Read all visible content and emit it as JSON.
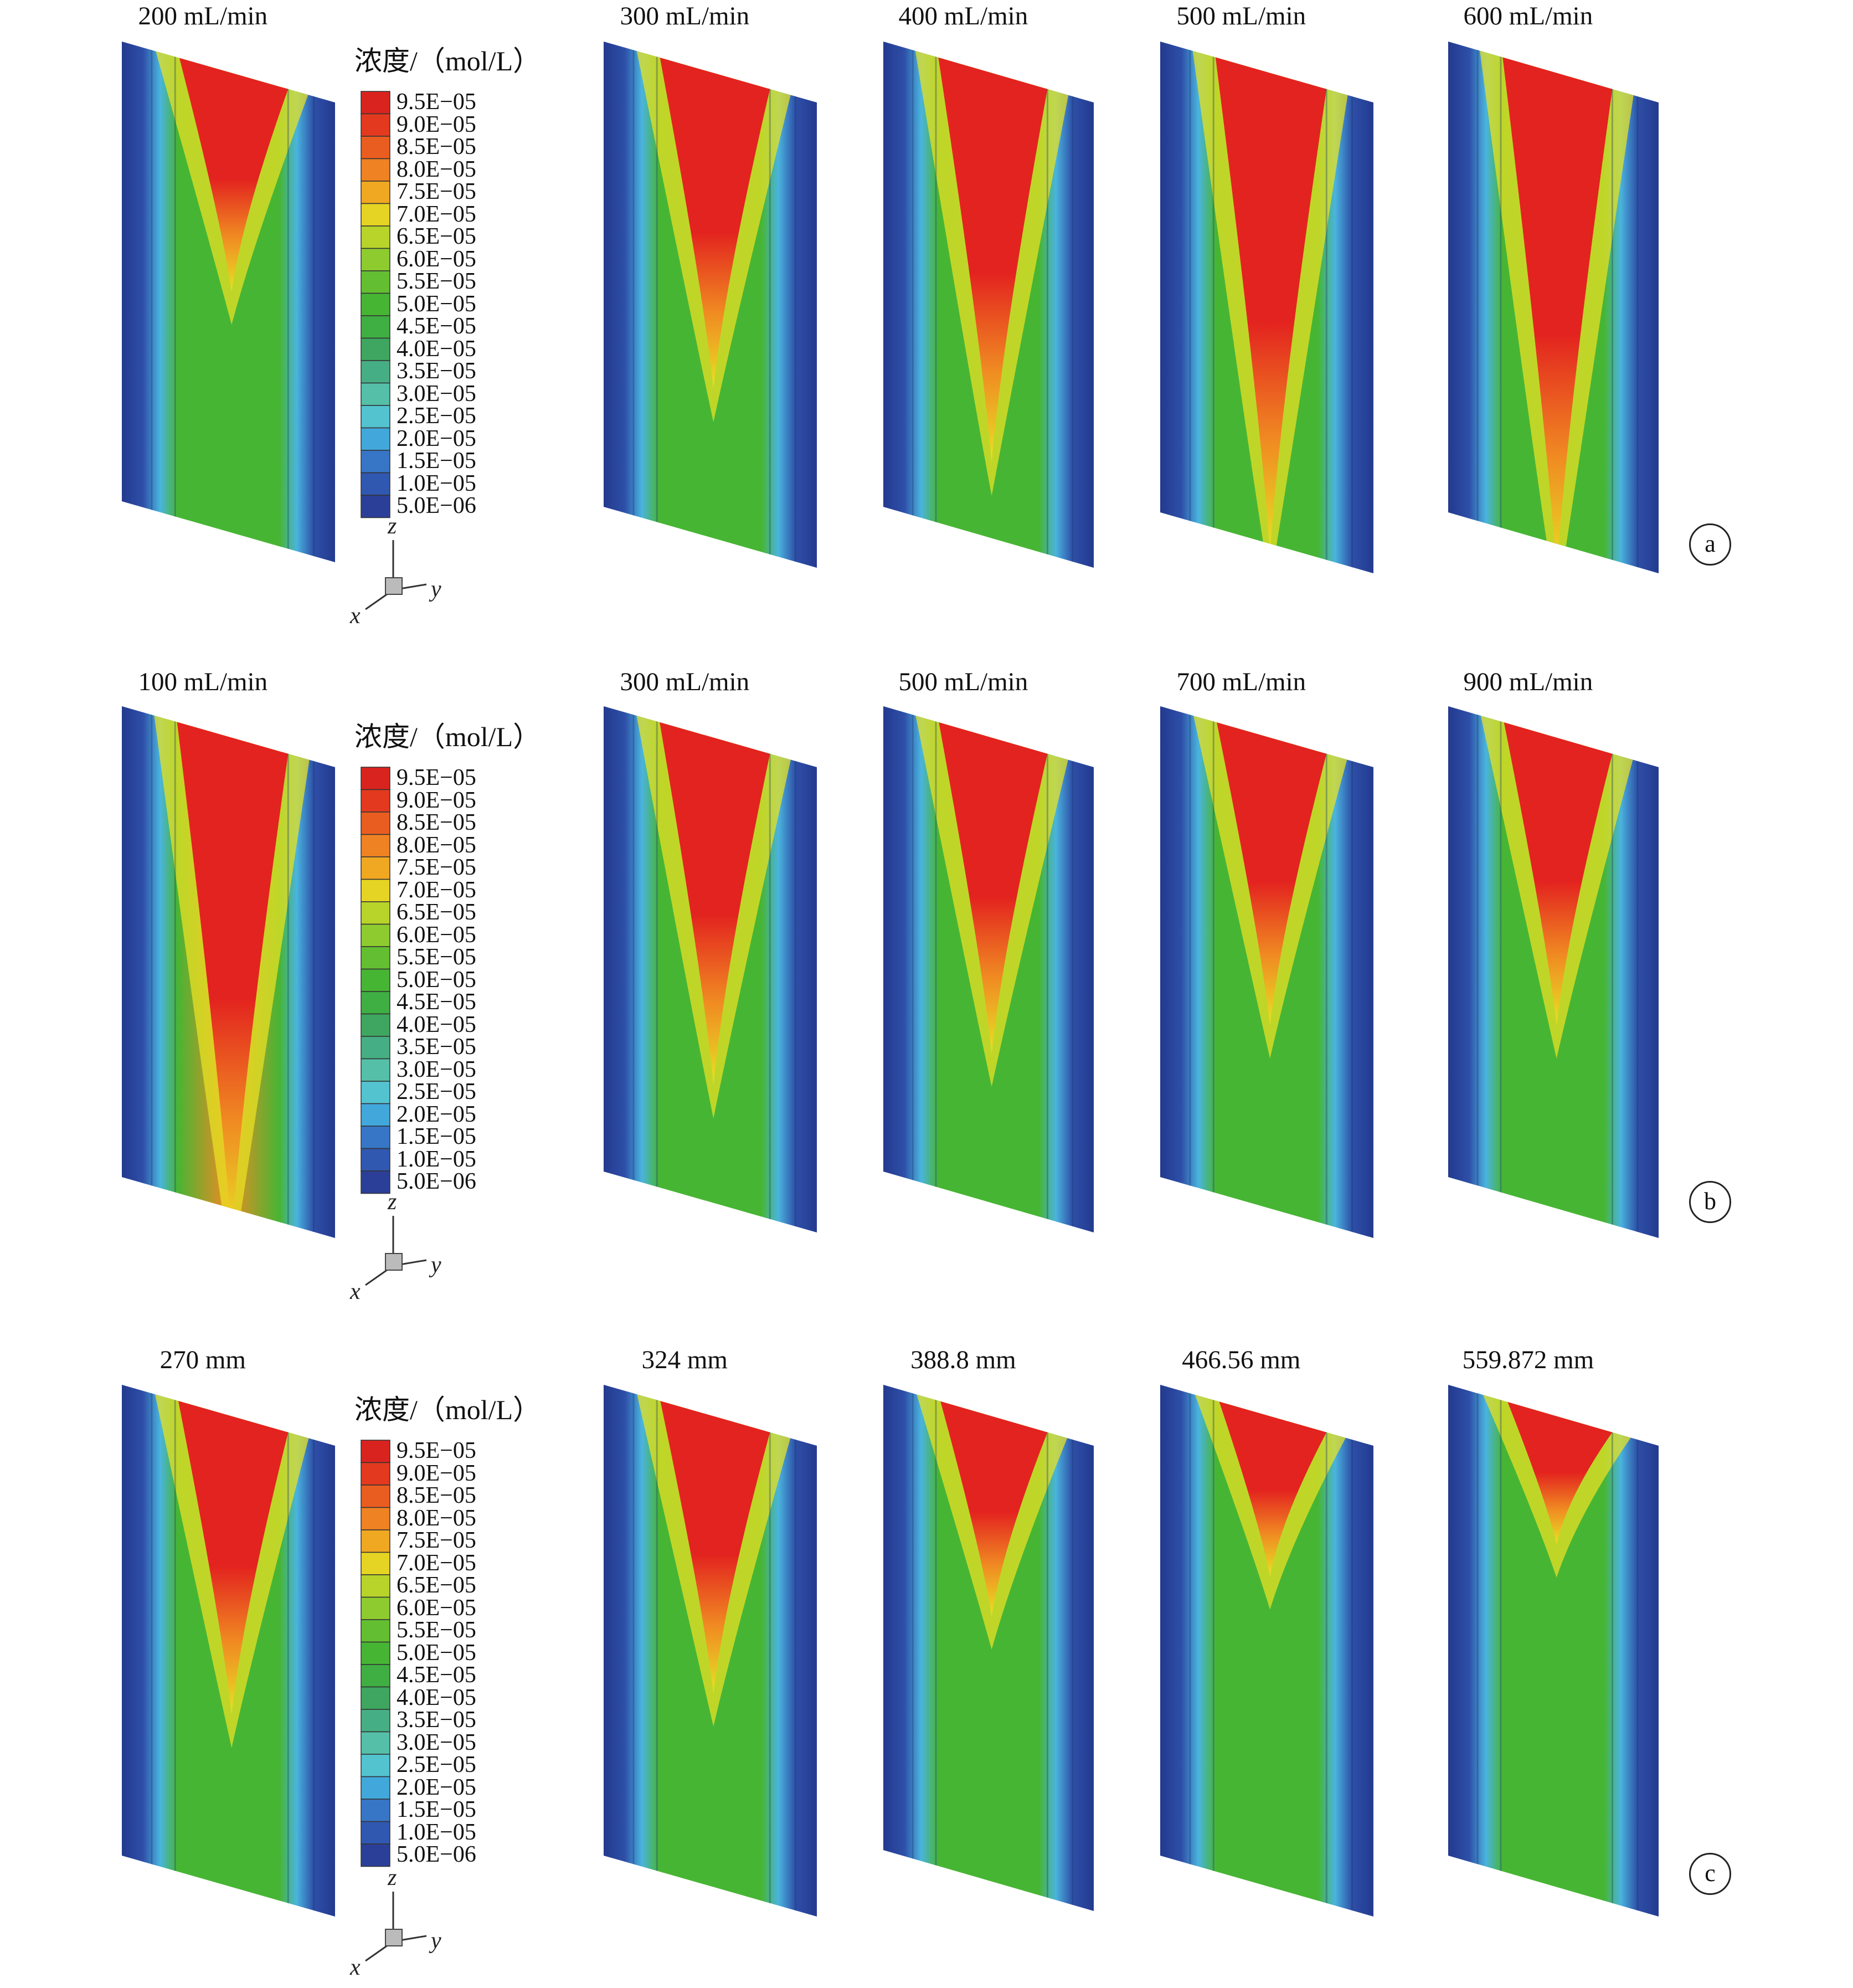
{
  "legend": {
    "title": "浓度/（mol/L）",
    "ticks": [
      "9.5E−05",
      "9.0E−05",
      "8.5E−05",
      "8.0E−05",
      "7.5E−05",
      "7.0E−05",
      "6.5E−05",
      "6.0E−05",
      "5.5E−05",
      "5.0E−05",
      "4.5E−05",
      "4.0E−05",
      "3.5E−05",
      "3.0E−05",
      "2.5E−05",
      "2.0E−05",
      "1.5E−05",
      "1.0E−05",
      "5.0E−06"
    ]
  },
  "axes": {
    "z": "z",
    "x": "x",
    "y": "y"
  },
  "rows": [
    {
      "letter": "a",
      "panels": [
        {
          "label": "200 mL/min"
        },
        {
          "label": "300 mL/min"
        },
        {
          "label": "400 mL/min"
        },
        {
          "label": "500 mL/min"
        },
        {
          "label": "600 mL/min"
        }
      ]
    },
    {
      "letter": "b",
      "panels": [
        {
          "label": "100 mL/min"
        },
        {
          "label": "300 mL/min"
        },
        {
          "label": "500 mL/min"
        },
        {
          "label": "700 mL/min"
        },
        {
          "label": "900 mL/min"
        }
      ]
    },
    {
      "letter": "c",
      "panels": [
        {
          "label": "270 mm"
        },
        {
          "label": "324 mm"
        },
        {
          "label": "388.8 mm"
        },
        {
          "label": "466.56 mm"
        },
        {
          "label": "559.872 mm"
        }
      ]
    }
  ],
  "colors": {
    "red": "#e3231f",
    "orange": "#f08a22",
    "yellow": "#e7e224",
    "green": "#47b534",
    "teal": "#55c7b6",
    "cyan": "#4ab4de",
    "blue": "#2e4fa8",
    "darkblue": "#233a8f"
  }
}
